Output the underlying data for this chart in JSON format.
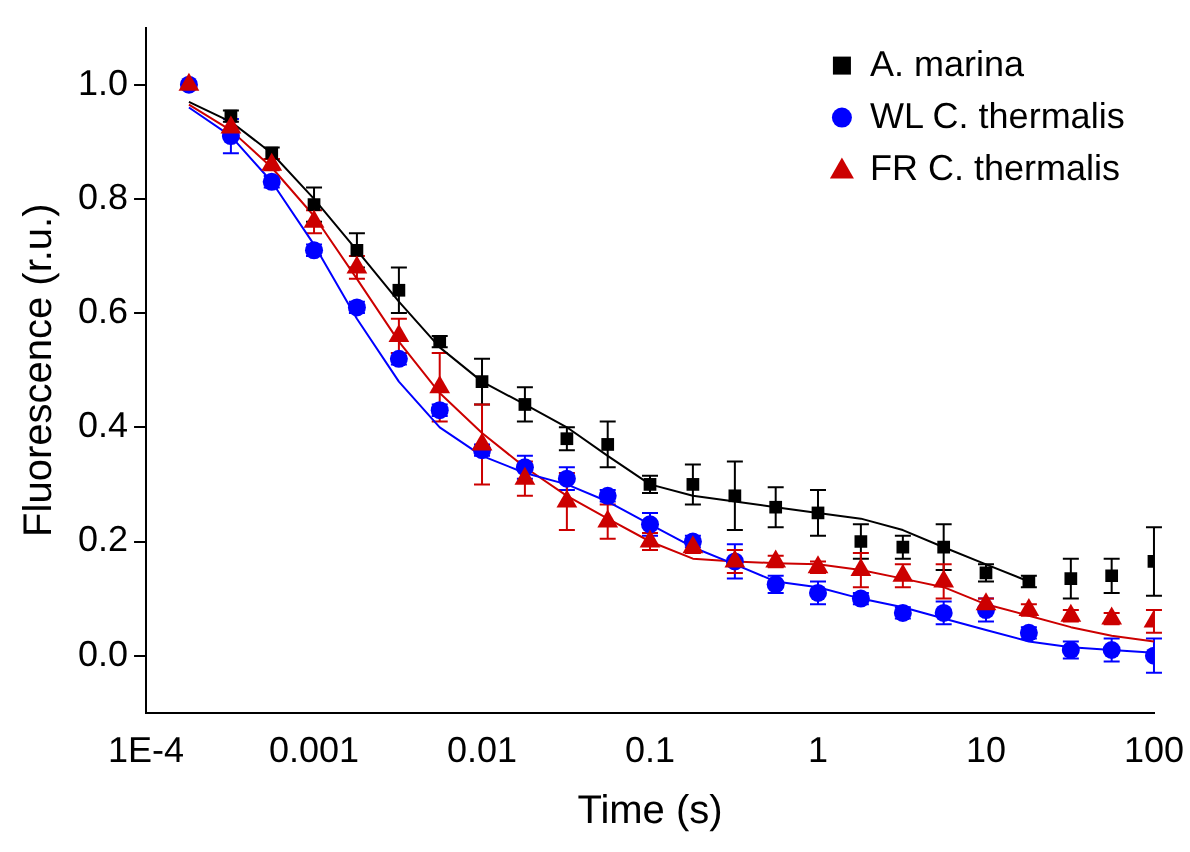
{
  "chart_data": {
    "type": "scatter",
    "xlabel": "Time (s)",
    "ylabel": "Fluorescence (r.u.)",
    "log": "x",
    "grid": false,
    "legend": "top right",
    "xlim": [
      0.0001,
      100
    ],
    "xticks": [
      {
        "value": 0.0001,
        "label": "1E-4"
      },
      0.001,
      0.01,
      0.1,
      1,
      10,
      100
    ],
    "ylim": [
      -0.1,
      1.1
    ],
    "yticks": [
      {
        "value": 0,
        "label": "0.0"
      },
      0.2,
      0.4,
      0.6,
      0.8,
      {
        "value": 1,
        "label": "1.0"
      }
    ],
    "x": [
      0.00018,
      0.00032,
      0.00056,
      0.001,
      0.0018,
      0.0032,
      0.0056,
      0.01,
      0.018,
      0.032,
      0.056,
      0.1,
      0.18,
      0.32,
      0.56,
      1,
      1.8,
      3.2,
      5.6,
      10,
      18,
      32,
      56,
      100
    ],
    "series": [
      {
        "name": "A. marina",
        "color": "#000000",
        "marker": "square",
        "values": [
          null,
          0.945,
          0.88,
          0.79,
          0.71,
          0.64,
          0.55,
          0.48,
          0.44,
          0.38,
          0.37,
          0.3,
          0.3,
          0.28,
          0.26,
          0.25,
          0.2,
          0.19,
          0.19,
          0.145,
          0.13,
          0.135,
          0.14,
          0.165
        ],
        "errors": [
          null,
          0.01,
          0.01,
          0.03,
          0.03,
          0.04,
          0.01,
          0.04,
          0.03,
          0.02,
          0.04,
          0.015,
          0.035,
          0.06,
          0.035,
          0.04,
          0.03,
          0.02,
          0.04,
          0.015,
          0.01,
          0.035,
          0.03,
          0.06
        ]
      },
      {
        "name": "WL C. thermalis",
        "color": "#0000ff",
        "marker": "circle",
        "values": [
          1.0,
          0.91,
          0.83,
          0.71,
          0.61,
          0.52,
          0.43,
          0.36,
          0.33,
          0.31,
          0.28,
          0.23,
          0.2,
          0.165,
          0.125,
          0.11,
          0.1,
          0.075,
          0.075,
          0.08,
          0.04,
          0.01,
          0.01,
          0.0
        ],
        "errors": [
          0,
          0.03,
          0.01,
          0.01,
          0.01,
          0.01,
          0.01,
          0.01,
          0.02,
          0.02,
          0.01,
          0.02,
          0.01,
          0.03,
          0.015,
          0.02,
          0.01,
          0.01,
          0.02,
          0.02,
          0.01,
          0.015,
          0.02,
          0.03
        ]
      },
      {
        "name": "FR C. thermalis",
        "color": "#cc0000",
        "marker": "triangle",
        "values": [
          1.0,
          0.925,
          0.86,
          0.76,
          0.68,
          0.56,
          0.47,
          0.37,
          0.31,
          0.27,
          0.235,
          0.2,
          0.19,
          0.165,
          0.165,
          0.155,
          0.15,
          0.14,
          0.13,
          0.09,
          0.08,
          0.07,
          0.065,
          0.06
        ],
        "errors": [
          0,
          null,
          0.01,
          0.02,
          0.02,
          0.03,
          0.06,
          0.07,
          0.03,
          0.05,
          0.03,
          0.015,
          0.01,
          0.02,
          0.01,
          0.01,
          0.03,
          0.02,
          0.03,
          0.01,
          0.01,
          0.01,
          0.01,
          0.02
        ]
      },
      {
        "type": "line",
        "color": "#000000",
        "marker": "none",
        "x": [
          0.00018,
          0.00032,
          0.00056,
          0.001,
          0.0018,
          0.0032,
          0.0056,
          0.01,
          0.018,
          0.032,
          0.056,
          0.1,
          0.18,
          0.32,
          0.56,
          1,
          1.8,
          3.2,
          5.6,
          10,
          18
        ],
        "values": [
          0.97,
          0.935,
          0.88,
          0.8,
          0.71,
          0.62,
          0.54,
          0.48,
          0.44,
          0.4,
          0.35,
          0.3,
          0.28,
          0.27,
          0.26,
          0.25,
          0.24,
          0.22,
          0.19,
          0.16,
          0.13
        ]
      },
      {
        "type": "line",
        "color": "#0000ff",
        "marker": "none",
        "x": [
          0.00018,
          0.00032,
          0.00056,
          0.001,
          0.0018,
          0.0032,
          0.0056,
          0.01,
          0.018,
          0.032,
          0.056,
          0.1,
          0.18,
          0.32,
          0.56,
          1,
          1.8,
          3.2,
          5.6,
          10,
          18,
          32,
          56,
          100
        ],
        "values": [
          0.96,
          0.91,
          0.83,
          0.72,
          0.59,
          0.48,
          0.4,
          0.35,
          0.32,
          0.3,
          0.27,
          0.23,
          0.19,
          0.16,
          0.13,
          0.12,
          0.1,
          0.085,
          0.065,
          0.045,
          0.025,
          0.015,
          0.01,
          0.005
        ]
      },
      {
        "type": "line",
        "color": "#cc0000",
        "marker": "none",
        "x": [
          0.00018,
          0.00032,
          0.00056,
          0.001,
          0.0018,
          0.0032,
          0.0056,
          0.01,
          0.018,
          0.032,
          0.056,
          0.1,
          0.18,
          0.32,
          0.56,
          1,
          1.8,
          3.2,
          5.6,
          10,
          18,
          32,
          56,
          100
        ],
        "values": [
          0.965,
          0.92,
          0.855,
          0.77,
          0.66,
          0.55,
          0.46,
          0.39,
          0.33,
          0.28,
          0.24,
          0.2,
          0.17,
          0.165,
          0.162,
          0.16,
          0.15,
          0.135,
          0.12,
          0.09,
          0.07,
          0.05,
          0.035,
          0.025
        ]
      }
    ]
  }
}
